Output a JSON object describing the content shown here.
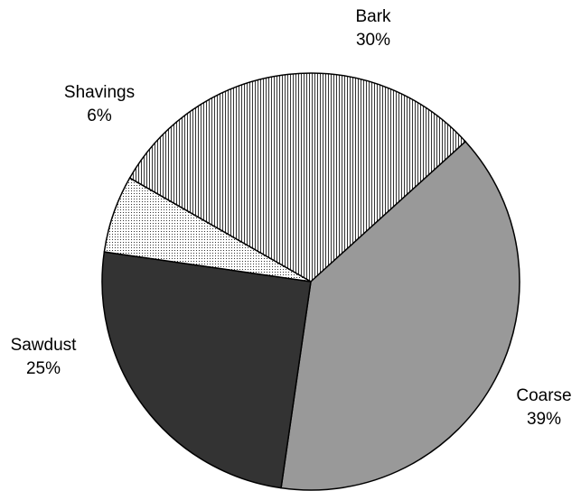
{
  "chart_data": {
    "type": "pie",
    "title": "",
    "slices": [
      {
        "label": "Bark",
        "value": 30,
        "value_label": "30%",
        "fill": "vertical-hatch",
        "color": "#ffffff"
      },
      {
        "label": "Coarse",
        "value": 39,
        "value_label": "39%",
        "fill": "solid",
        "color": "#999999"
      },
      {
        "label": "Sawdust",
        "value": 25,
        "value_label": "25%",
        "fill": "solid",
        "color": "#333333"
      },
      {
        "label": "Shavings",
        "value": 6,
        "value_label": "6%",
        "fill": "dotted",
        "color": "#ffffff"
      }
    ]
  }
}
